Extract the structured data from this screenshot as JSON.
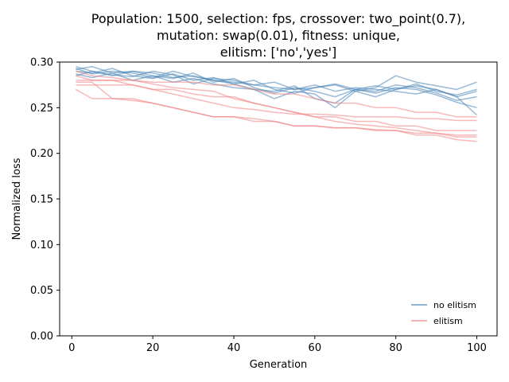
{
  "chart_data": {
    "type": "line",
    "title_lines": [
      "Population: 1500, selection: fps, crossover: two_point(0.7),",
      "mutation: swap(0.01), fitness: unique,",
      "elitism: ['no','yes']"
    ],
    "xlabel": "Generation",
    "ylabel": "Normalized loss",
    "xlim": [
      -3,
      105
    ],
    "ylim": [
      0.0,
      0.3
    ],
    "xticks": [
      0,
      20,
      40,
      60,
      80,
      100
    ],
    "yticks": [
      0.0,
      0.05,
      0.1,
      0.15,
      0.2,
      0.25,
      0.3
    ],
    "ytick_labels": [
      "0.00",
      "0.05",
      "0.10",
      "0.15",
      "0.20",
      "0.25",
      "0.30"
    ],
    "grid": false,
    "legend_position": "lower-right",
    "colors": {
      "no_elitism": "#4682b4",
      "elitism": "#f08080"
    },
    "legend": [
      {
        "label": "no elitism",
        "group": "no_elitism"
      },
      {
        "label": "elitism",
        "group": "elitism"
      }
    ],
    "series": [
      {
        "group": "no_elitism",
        "x": [
          1,
          5,
          10,
          15,
          20,
          25,
          30,
          35,
          40,
          45,
          50,
          55,
          60,
          65,
          70,
          75,
          80,
          85,
          90,
          95,
          100
        ],
        "y": [
          0.295,
          0.29,
          0.285,
          0.29,
          0.288,
          0.283,
          0.285,
          0.28,
          0.278,
          0.275,
          0.272,
          0.27,
          0.275,
          0.268,
          0.272,
          0.27,
          0.268,
          0.265,
          0.27,
          0.262,
          0.268
        ]
      },
      {
        "group": "no_elitism",
        "x": [
          1,
          5,
          10,
          15,
          20,
          25,
          30,
          35,
          40,
          45,
          50,
          55,
          60,
          65,
          70,
          75,
          80,
          85,
          90,
          95,
          100
        ],
        "y": [
          0.29,
          0.288,
          0.293,
          0.285,
          0.282,
          0.287,
          0.28,
          0.283,
          0.276,
          0.28,
          0.27,
          0.266,
          0.272,
          0.276,
          0.27,
          0.268,
          0.275,
          0.272,
          0.266,
          0.258,
          0.262
        ]
      },
      {
        "group": "no_elitism",
        "x": [
          1,
          5,
          10,
          15,
          20,
          25,
          30,
          35,
          40,
          45,
          50,
          55,
          60,
          65,
          70,
          75,
          80,
          85,
          90,
          95,
          100
        ],
        "y": [
          0.292,
          0.295,
          0.288,
          0.29,
          0.285,
          0.282,
          0.288,
          0.278,
          0.282,
          0.272,
          0.266,
          0.272,
          0.268,
          0.262,
          0.27,
          0.274,
          0.27,
          0.276,
          0.268,
          0.264,
          0.27
        ]
      },
      {
        "group": "no_elitism",
        "x": [
          1,
          5,
          10,
          15,
          20,
          25,
          30,
          35,
          40,
          45,
          50,
          55,
          60,
          65,
          70,
          75,
          80,
          85,
          90,
          95,
          100
        ],
        "y": [
          0.287,
          0.283,
          0.288,
          0.28,
          0.285,
          0.278,
          0.282,
          0.276,
          0.272,
          0.27,
          0.268,
          0.274,
          0.26,
          0.255,
          0.27,
          0.266,
          0.272,
          0.27,
          0.264,
          0.256,
          0.25
        ]
      },
      {
        "group": "no_elitism",
        "x": [
          1,
          5,
          10,
          15,
          20,
          25,
          30,
          35,
          40,
          45,
          50,
          55,
          60,
          65,
          70,
          75,
          80,
          85,
          90,
          95,
          100
        ],
        "y": [
          0.285,
          0.29,
          0.286,
          0.284,
          0.29,
          0.286,
          0.276,
          0.282,
          0.28,
          0.275,
          0.278,
          0.27,
          0.272,
          0.275,
          0.268,
          0.272,
          0.285,
          0.278,
          0.274,
          0.27,
          0.278
        ]
      },
      {
        "group": "no_elitism",
        "x": [
          1,
          5,
          10,
          15,
          20,
          25,
          30,
          35,
          40,
          45,
          50,
          55,
          60,
          65,
          70,
          75,
          80,
          85,
          90,
          95,
          100
        ],
        "y": [
          0.293,
          0.287,
          0.29,
          0.288,
          0.283,
          0.29,
          0.284,
          0.28,
          0.276,
          0.27,
          0.26,
          0.268,
          0.265,
          0.25,
          0.268,
          0.262,
          0.27,
          0.274,
          0.27,
          0.262,
          0.242
        ]
      },
      {
        "group": "elitism",
        "x": [
          1,
          5,
          10,
          15,
          20,
          25,
          30,
          35,
          40,
          45,
          50,
          55,
          60,
          65,
          70,
          75,
          80,
          85,
          90,
          95,
          100
        ],
        "y": [
          0.28,
          0.28,
          0.28,
          0.28,
          0.278,
          0.278,
          0.278,
          0.275,
          0.275,
          0.27,
          0.265,
          0.265,
          0.26,
          0.255,
          0.255,
          0.25,
          0.25,
          0.245,
          0.245,
          0.24,
          0.24
        ]
      },
      {
        "group": "elitism",
        "x": [
          1,
          5,
          10,
          15,
          20,
          25,
          30,
          35,
          40,
          45,
          50,
          55,
          60,
          65,
          70,
          75,
          80,
          85,
          90,
          95,
          100
        ],
        "y": [
          0.275,
          0.275,
          0.275,
          0.275,
          0.27,
          0.27,
          0.265,
          0.262,
          0.262,
          0.255,
          0.25,
          0.245,
          0.24,
          0.24,
          0.235,
          0.235,
          0.23,
          0.23,
          0.225,
          0.225,
          0.225
        ]
      },
      {
        "group": "elitism",
        "x": [
          1,
          5,
          10,
          15,
          20,
          25,
          30,
          35,
          40,
          45,
          50,
          55,
          60,
          65,
          70,
          75,
          80,
          85,
          90,
          95,
          100
        ],
        "y": [
          0.27,
          0.26,
          0.26,
          0.26,
          0.255,
          0.25,
          0.245,
          0.24,
          0.24,
          0.235,
          0.235,
          0.23,
          0.23,
          0.228,
          0.228,
          0.225,
          0.225,
          0.22,
          0.22,
          0.215,
          0.213
        ]
      },
      {
        "group": "elitism",
        "x": [
          1,
          5,
          10,
          15,
          20,
          25,
          30,
          35,
          40,
          45,
          50,
          55,
          60,
          65,
          70,
          75,
          80,
          85,
          90,
          95,
          100
        ],
        "y": [
          0.278,
          0.278,
          0.26,
          0.258,
          0.255,
          0.25,
          0.245,
          0.24,
          0.24,
          0.238,
          0.235,
          0.23,
          0.23,
          0.228,
          0.228,
          0.226,
          0.225,
          0.222,
          0.222,
          0.218,
          0.218
        ]
      },
      {
        "group": "elitism",
        "x": [
          1,
          5,
          10,
          15,
          20,
          25,
          30,
          35,
          40,
          45,
          50,
          55,
          60,
          65,
          70,
          75,
          80,
          85,
          90,
          95,
          100
        ],
        "y": [
          0.285,
          0.28,
          0.28,
          0.275,
          0.27,
          0.265,
          0.26,
          0.255,
          0.25,
          0.248,
          0.245,
          0.243,
          0.243,
          0.242,
          0.24,
          0.24,
          0.24,
          0.238,
          0.238,
          0.236,
          0.236
        ]
      },
      {
        "group": "elitism",
        "x": [
          1,
          5,
          10,
          15,
          20,
          25,
          30,
          35,
          40,
          45,
          50,
          55,
          60,
          65,
          70,
          75,
          80,
          85,
          90,
          95,
          100
        ],
        "y": [
          0.29,
          0.285,
          0.283,
          0.28,
          0.276,
          0.272,
          0.27,
          0.268,
          0.26,
          0.255,
          0.25,
          0.245,
          0.24,
          0.235,
          0.232,
          0.23,
          0.228,
          0.225,
          0.222,
          0.22,
          0.22
        ]
      }
    ]
  }
}
